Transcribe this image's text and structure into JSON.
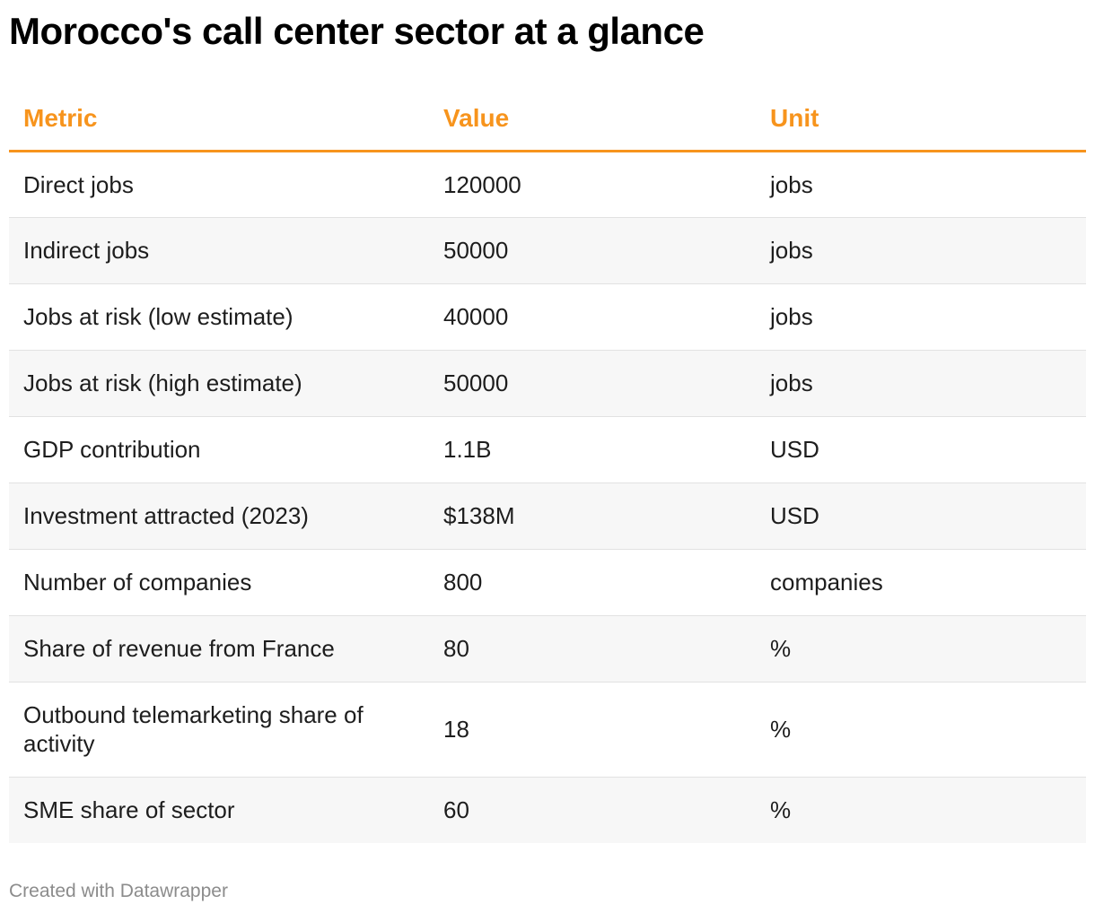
{
  "title": "Morocco's call center sector at a glance",
  "colors": {
    "header_text": "#f7941d",
    "header_rule": "#f7941d",
    "row_stripe": "#f7f7f7",
    "footer_text": "#8c8c8c"
  },
  "footer": "Created with Datawrapper",
  "chart_data": {
    "type": "table",
    "title": "Morocco's call center sector at a glance",
    "columns": [
      "Metric",
      "Value",
      "Unit"
    ],
    "rows": [
      [
        "Direct jobs",
        "120000",
        "jobs"
      ],
      [
        "Indirect jobs",
        "50000",
        "jobs"
      ],
      [
        "Jobs at risk (low estimate)",
        "40000",
        "jobs"
      ],
      [
        "Jobs at risk (high estimate)",
        "50000",
        "jobs"
      ],
      [
        "GDP contribution",
        "1.1B",
        "USD"
      ],
      [
        "Investment attracted (2023)",
        "$138M",
        "USD"
      ],
      [
        "Number of companies",
        "800",
        "companies"
      ],
      [
        "Share of revenue from France",
        "80",
        "%"
      ],
      [
        "Outbound telemarketing share of activity",
        "18",
        "%"
      ],
      [
        "SME share of sector",
        "60",
        "%"
      ]
    ]
  }
}
